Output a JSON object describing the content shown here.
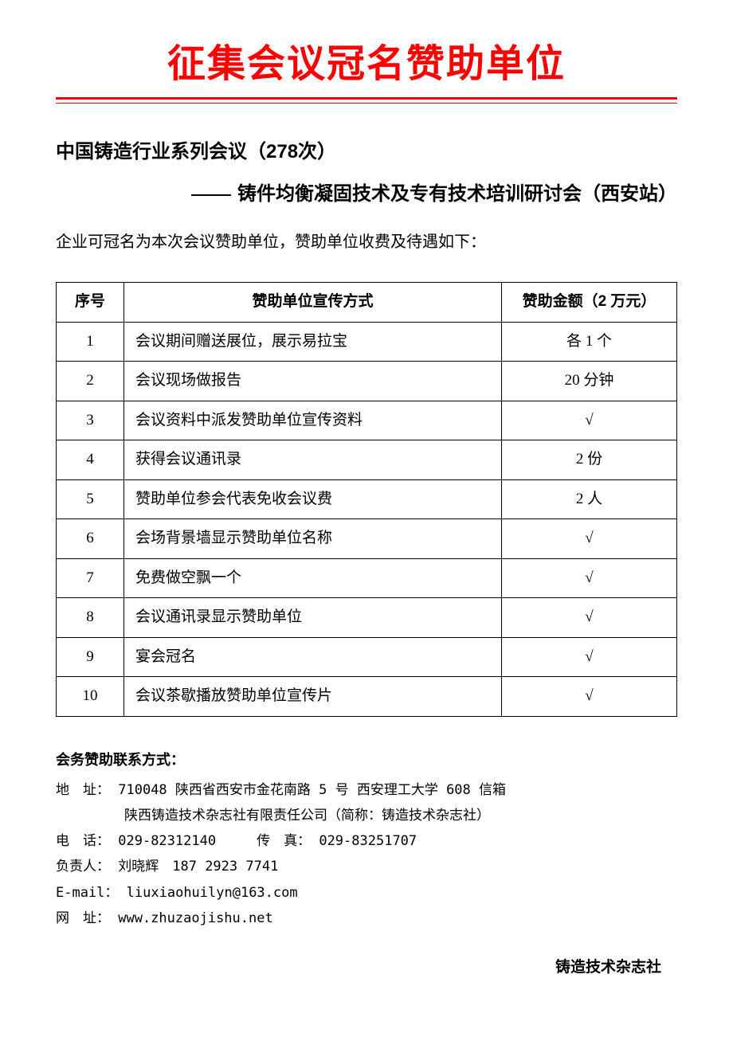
{
  "colors": {
    "title_color": "#ff0000",
    "underline_color": "#ff0000",
    "text_color": "#000000",
    "border_color": "#000000",
    "background": "#ffffff"
  },
  "main_title": "征集会议冠名赞助单位",
  "subtitle_line1": "中国铸造行业系列会议（278次）",
  "subtitle_line2": "铸件均衡凝固技术及专有技术培训研讨会（西安站）",
  "intro": "企业可冠名为本次会议赞助单位，赞助单位收费及待遇如下：",
  "table": {
    "headers": {
      "index": "序号",
      "method": "赞助单位宣传方式",
      "amount": "赞助金额（2 万元）"
    },
    "rows": [
      {
        "index": "1",
        "method": "会议期间赠送展位，展示易拉宝",
        "amount": "各 1 个"
      },
      {
        "index": "2",
        "method": "会议现场做报告",
        "amount": "20 分钟"
      },
      {
        "index": "3",
        "method": "会议资料中派发赞助单位宣传资料",
        "amount": "√"
      },
      {
        "index": "4",
        "method": "获得会议通讯录",
        "amount": "2 份"
      },
      {
        "index": "5",
        "method": "赞助单位参会代表免收会议费",
        "amount": "2 人"
      },
      {
        "index": "6",
        "method": "会场背景墙显示赞助单位名称",
        "amount": "√"
      },
      {
        "index": "7",
        "method": "免费做空飘一个",
        "amount": "√"
      },
      {
        "index": "8",
        "method": "会议通讯录显示赞助单位",
        "amount": "√"
      },
      {
        "index": "9",
        "method": "宴会冠名",
        "amount": "√"
      },
      {
        "index": "10",
        "method": "会议茶歇播放赞助单位宣传片",
        "amount": "√"
      }
    ]
  },
  "contact": {
    "title": "会务赞助联系方式：",
    "address_label": "地　址：",
    "address_line1": "710048 陕西省西安市金花南路 5 号 西安理工大学 608 信箱",
    "address_line2": "陕西铸造技术杂志社有限责任公司（简称：铸造技术杂志社）",
    "phone_label": "电　话：",
    "phone_value": "029-82312140",
    "fax_label": "传　真：",
    "fax_value": "029-83251707",
    "person_label": "负责人：",
    "person_value": "刘晓辉　187 2923 7741",
    "email_label": "E-mail：",
    "email_value": "liuxiaohuilyn@163.com",
    "web_label": "网　址：",
    "web_value": "www.zhuzaojishu.net"
  },
  "footer": "铸造技术杂志社"
}
